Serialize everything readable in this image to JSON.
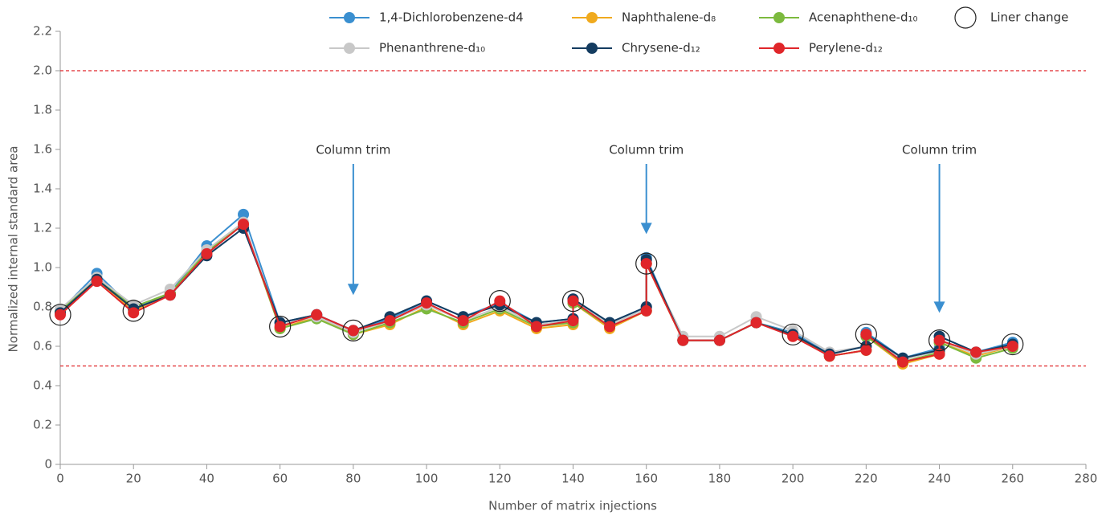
{
  "chart_data": {
    "type": "line",
    "x_label": "Number of matrix injections",
    "y_label": "Normalized internal standard area",
    "x": [
      0,
      10,
      20,
      30,
      40,
      50,
      60,
      70,
      80,
      90,
      100,
      110,
      120,
      130,
      140,
      140,
      150,
      160,
      160,
      170,
      180,
      190,
      200,
      210,
      220,
      220,
      230,
      240,
      240,
      250,
      260
    ],
    "series": [
      {
        "name": "1,4-Dichlorobenzene-d4",
        "color": "#3a8fd0",
        "values": [
          0.78,
          0.97,
          0.79,
          0.87,
          1.11,
          1.27,
          0.72,
          0.76,
          0.68,
          0.74,
          0.83,
          0.75,
          0.82,
          0.72,
          0.74,
          0.84,
          0.72,
          0.8,
          1.05,
          0.63,
          0.63,
          0.72,
          0.67,
          0.56,
          0.6,
          0.67,
          0.54,
          0.59,
          0.65,
          0.57,
          0.62
        ]
      },
      {
        "name": "Naphthalene-d₈",
        "color": "#f0aa1e",
        "values": [
          0.77,
          0.94,
          0.78,
          0.87,
          1.08,
          1.22,
          0.69,
          0.75,
          0.66,
          0.71,
          0.8,
          0.71,
          0.78,
          0.69,
          0.71,
          0.82,
          0.69,
          0.78,
          1.02,
          0.63,
          0.63,
          0.72,
          0.66,
          0.55,
          0.58,
          0.65,
          0.51,
          0.56,
          0.62,
          0.55,
          0.6
        ]
      },
      {
        "name": "Acenaphthene-d₁₀",
        "color": "#7cba3e",
        "values": [
          0.78,
          0.94,
          0.8,
          0.87,
          1.08,
          1.22,
          0.69,
          0.74,
          0.66,
          0.72,
          0.79,
          0.72,
          0.79,
          0.7,
          0.72,
          0.82,
          0.7,
          0.78,
          1.02,
          0.63,
          0.63,
          0.72,
          0.66,
          0.55,
          0.58,
          0.65,
          0.52,
          0.57,
          0.62,
          0.54,
          0.59
        ]
      },
      {
        "name": "Phenanthrene-d₁₀",
        "color": "#c8c8c8",
        "values": [
          0.79,
          0.95,
          0.81,
          0.89,
          1.09,
          1.23,
          0.71,
          0.75,
          0.67,
          0.73,
          0.81,
          0.73,
          0.8,
          0.71,
          0.73,
          0.83,
          0.71,
          0.79,
          1.03,
          0.65,
          0.65,
          0.75,
          0.68,
          0.57,
          0.6,
          0.66,
          0.53,
          0.58,
          0.63,
          0.56,
          0.6
        ]
      },
      {
        "name": "Chrysene-d₁₂",
        "color": "#143c60",
        "values": [
          0.77,
          0.94,
          0.79,
          0.86,
          1.06,
          1.2,
          0.72,
          0.76,
          0.68,
          0.75,
          0.83,
          0.75,
          0.81,
          0.72,
          0.74,
          0.84,
          0.72,
          0.8,
          1.04,
          0.63,
          0.63,
          0.72,
          0.66,
          0.56,
          0.6,
          0.66,
          0.54,
          0.58,
          0.65,
          0.57,
          0.61
        ]
      },
      {
        "name": "Perylene-d₁₂",
        "color": "#e0262a",
        "values": [
          0.76,
          0.93,
          0.77,
          0.86,
          1.07,
          1.22,
          0.7,
          0.76,
          0.68,
          0.73,
          0.82,
          0.73,
          0.83,
          0.7,
          0.73,
          0.83,
          0.7,
          0.78,
          1.02,
          0.63,
          0.63,
          0.72,
          0.65,
          0.55,
          0.58,
          0.66,
          0.52,
          0.56,
          0.63,
          0.57,
          0.6
        ]
      }
    ],
    "liner_change": {
      "name": "Liner change",
      "color": "#222222",
      "x": [
        0,
        20,
        60,
        80,
        120,
        140,
        160,
        200,
        220,
        240,
        260
      ],
      "values": [
        0.76,
        0.78,
        0.7,
        0.68,
        0.83,
        0.83,
        1.02,
        0.66,
        0.66,
        0.63,
        0.61
      ]
    },
    "annotations": [
      {
        "text": "Column trim",
        "x": 80,
        "y": 0.86
      },
      {
        "text": "Column trim",
        "x": 160,
        "y": 1.17
      },
      {
        "text": "Column trim",
        "x": 240,
        "y": 0.77
      }
    ],
    "annotation_color": "#3a8fd0",
    "hlines": [
      2.0,
      0.5
    ],
    "hline_color": "#e0262a",
    "xlim": [
      0,
      280
    ],
    "xticks": [
      0,
      20,
      40,
      60,
      80,
      100,
      120,
      140,
      160,
      180,
      200,
      220,
      240,
      260,
      280
    ],
    "ylim": [
      0,
      2.2
    ],
    "yticks": [
      0,
      0.2,
      0.4,
      0.6,
      0.8,
      {
        "value": 1,
        "label": "1.0"
      },
      1.2,
      1.4,
      1.6,
      1.8,
      {
        "value": 2,
        "label": "2.0"
      },
      2.2
    ]
  }
}
